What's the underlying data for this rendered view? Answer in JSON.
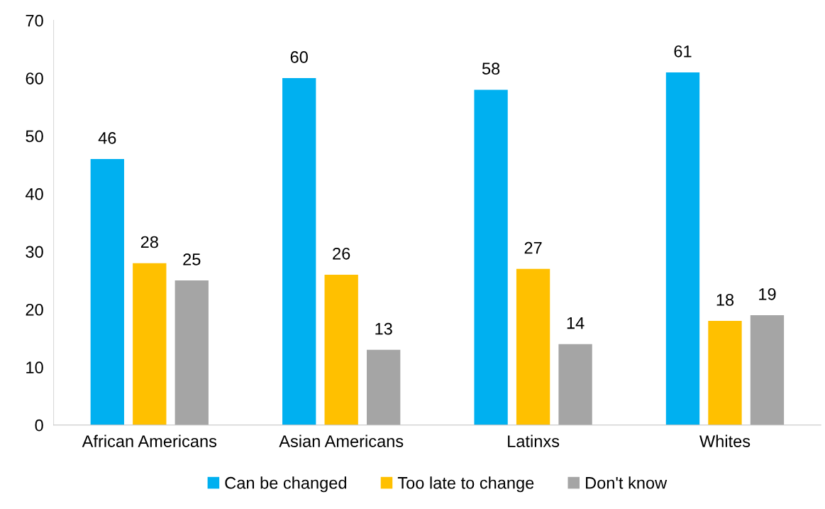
{
  "chart_data": {
    "type": "bar",
    "categories": [
      "African Americans",
      "Asian Americans",
      "Latinxs",
      "Whites"
    ],
    "series": [
      {
        "name": "Can be changed",
        "color": "#00b0f0",
        "values": [
          46,
          60,
          58,
          61
        ]
      },
      {
        "name": "Too late to change",
        "color": "#ffc000",
        "values": [
          28,
          26,
          27,
          18
        ]
      },
      {
        "name": "Don't know",
        "color": "#a5a5a5",
        "values": [
          25,
          13,
          14,
          19
        ]
      }
    ],
    "ylim": [
      0,
      70
    ],
    "yticks": [
      0,
      10,
      20,
      30,
      40,
      50,
      60,
      70
    ],
    "grid": false,
    "legend": "bottom",
    "data_labels": true
  }
}
